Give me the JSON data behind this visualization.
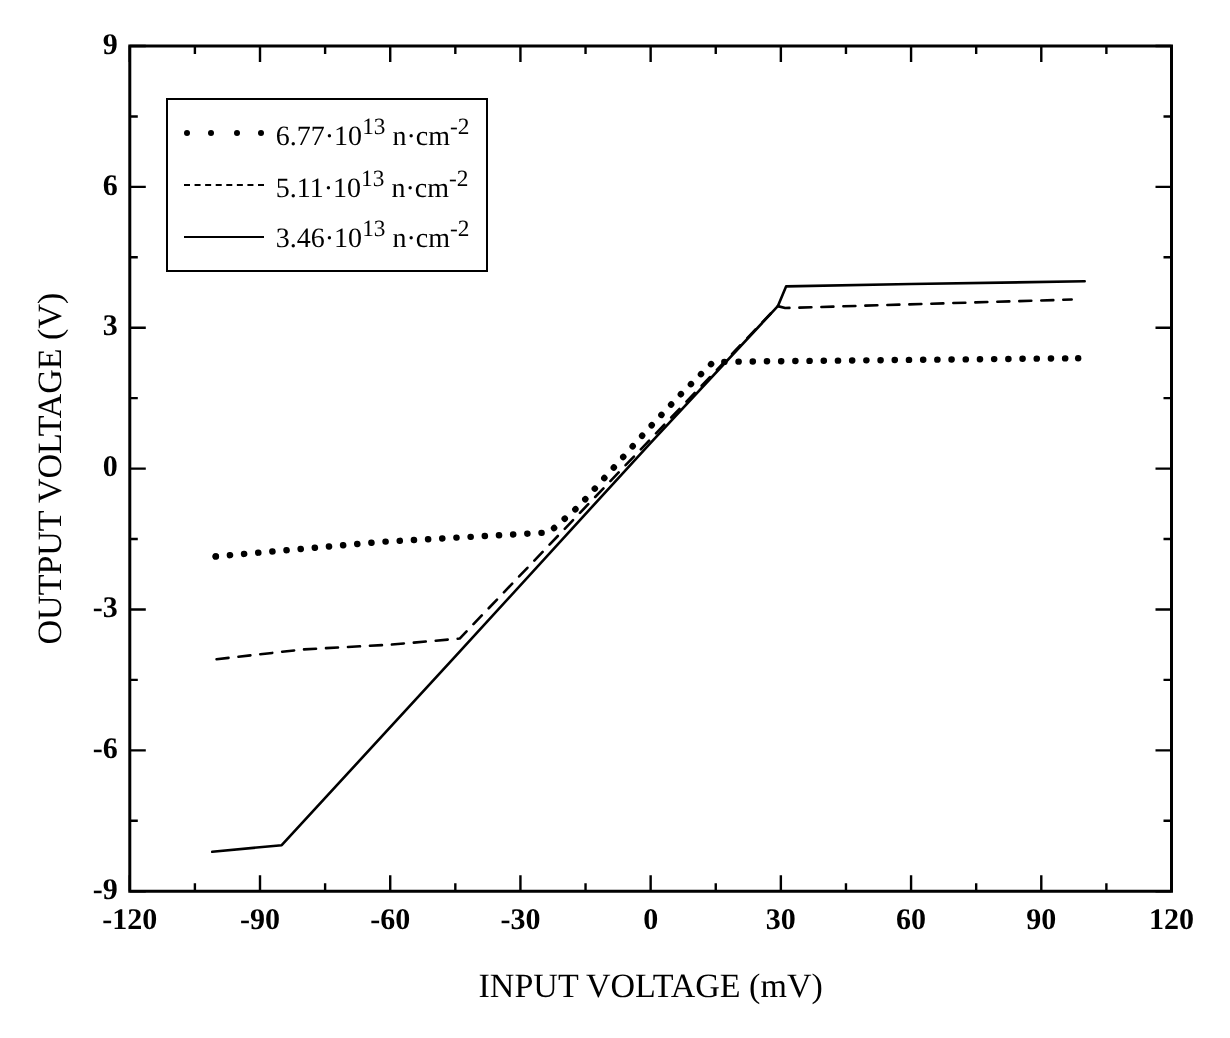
{
  "chart_data": {
    "type": "line",
    "xlabel": "INPUT VOLTAGE (mV)",
    "ylabel": "OUTPUT VOLTAGE (V)",
    "xlim": [
      -120,
      120
    ],
    "xticks": [
      -120,
      -90,
      -60,
      -30,
      0,
      30,
      60,
      90,
      120
    ],
    "ylim": [
      -9,
      9
    ],
    "yticks": [
      -9,
      -6,
      -3,
      0,
      3,
      6,
      9
    ],
    "grid": false,
    "legend": "top left",
    "marker": "none",
    "series": [
      {
        "name": "6.77·10$^{13}$ n·cm$^{-2}$",
        "color": "#000000",
        "line_style": "dotted",
        "x": [
          -100.2,
          -62,
          -23.4,
          -16.4,
          -8.8,
          -1.1,
          6.8,
          14.4,
          21.7,
          98.5
        ],
        "values": [
          -1.87,
          -1.56,
          -1.36,
          -0.79,
          -0.01,
          0.79,
          1.57,
          2.27,
          2.28,
          2.35
        ]
      },
      {
        "name": "5.11·10$^{13}$ n·cm$^{-2}$",
        "color": "#000000",
        "line_style": "dashed",
        "x": [
          -100,
          -80,
          -60,
          -44,
          29.3,
          31,
          97
        ],
        "values": [
          -4.06,
          -3.85,
          -3.75,
          -3.62,
          3.46,
          3.42,
          3.6
        ]
      },
      {
        "name": "3.46·10$^{13}$ n·cm$^{-2}$",
        "color": "#000000",
        "line_style": "solid",
        "x": [
          -101,
          -85,
          -45,
          0,
          29.3,
          31.2,
          60,
          100
        ],
        "values": [
          -8.16,
          -8.02,
          -4,
          0.55,
          3.46,
          3.88,
          3.93,
          3.99
        ]
      }
    ]
  }
}
